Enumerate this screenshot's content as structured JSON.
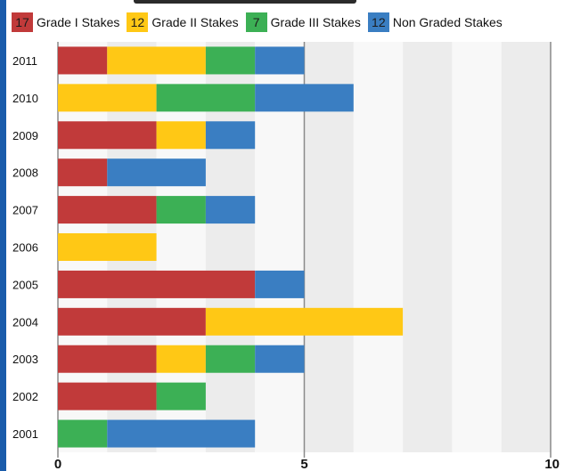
{
  "chart_data": {
    "type": "bar",
    "orientation": "horizontal",
    "stacked": true,
    "categories": [
      "2011",
      "2010",
      "2009",
      "2008",
      "2007",
      "2006",
      "2005",
      "2004",
      "2003",
      "2002",
      "2001"
    ],
    "series": [
      {
        "name": "Grade I Stakes",
        "count": "17",
        "color": "#c13a3a",
        "values": [
          1,
          0,
          2,
          1,
          2,
          0,
          4,
          3,
          2,
          2,
          0
        ]
      },
      {
        "name": "Grade II Stakes",
        "count": "12",
        "color": "#ffc815",
        "values": [
          2,
          2,
          1,
          0,
          0,
          2,
          0,
          4,
          1,
          0,
          0
        ]
      },
      {
        "name": "Grade III Stakes",
        "count": "7",
        "color": "#3cb055",
        "values": [
          1,
          2,
          0,
          0,
          1,
          0,
          0,
          0,
          1,
          1,
          1
        ]
      },
      {
        "name": "Non Graded Stakes",
        "count": "12",
        "color": "#3a7ec2",
        "values": [
          1,
          2,
          1,
          2,
          1,
          0,
          1,
          0,
          1,
          0,
          3
        ]
      }
    ],
    "xlim": [
      0,
      10
    ],
    "xticks": [
      "0",
      "5",
      "10"
    ],
    "grid": true,
    "legend_position": "top"
  }
}
